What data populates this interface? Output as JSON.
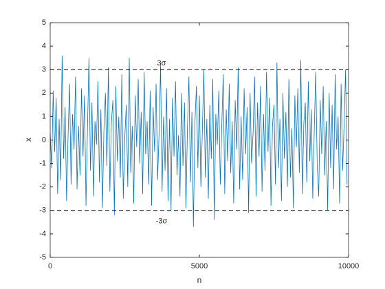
{
  "chart_data": {
    "type": "line",
    "xlabel": "n",
    "ylabel": "x",
    "xlim": [
      0,
      10000
    ],
    "xticks": [
      0,
      5000,
      10000
    ],
    "ylim": [
      -5,
      5
    ],
    "yticks": [
      -5,
      -4,
      -3,
      -2,
      -1,
      0,
      1,
      2,
      3,
      4,
      5
    ],
    "color": "#0072bd",
    "reference_lines": [
      {
        "value": 3,
        "label": "3σ"
      },
      {
        "value": -3,
        "label": "-3σ"
      }
    ],
    "x": [
      0,
      50,
      100,
      150,
      200,
      250,
      300,
      350,
      400,
      450,
      500,
      550,
      600,
      650,
      700,
      750,
      800,
      850,
      900,
      950,
      1000,
      1050,
      1100,
      1150,
      1200,
      1250,
      1300,
      1350,
      1400,
      1450,
      1500,
      1550,
      1600,
      1650,
      1700,
      1750,
      1800,
      1850,
      1900,
      1950,
      2000,
      2050,
      2100,
      2150,
      2200,
      2250,
      2300,
      2350,
      2400,
      2450,
      2500,
      2550,
      2600,
      2650,
      2700,
      2750,
      2800,
      2850,
      2900,
      2950,
      3000,
      3050,
      3100,
      3150,
      3200,
      3250,
      3300,
      3350,
      3400,
      3450,
      3500,
      3550,
      3600,
      3650,
      3700,
      3750,
      3800,
      3850,
      3900,
      3950,
      4000,
      4050,
      4100,
      4150,
      4200,
      4250,
      4300,
      4350,
      4400,
      4450,
      4500,
      4550,
      4600,
      4650,
      4700,
      4750,
      4800,
      4850,
      4900,
      4950,
      5000,
      5050,
      5100,
      5150,
      5200,
      5250,
      5300,
      5350,
      5400,
      5450,
      5500,
      5550,
      5600,
      5650,
      5700,
      5750,
      5800,
      5850,
      5900,
      5950,
      6000,
      6050,
      6100,
      6150,
      6200,
      6250,
      6300,
      6350,
      6400,
      6450,
      6500,
      6550,
      6600,
      6650,
      6700,
      6750,
      6800,
      6850,
      6900,
      6950,
      7000,
      7050,
      7100,
      7150,
      7200,
      7250,
      7300,
      7350,
      7400,
      7450,
      7500,
      7550,
      7600,
      7650,
      7700,
      7750,
      7800,
      7850,
      7900,
      7950,
      8000,
      8050,
      8100,
      8150,
      8200,
      8250,
      8300,
      8350,
      8400,
      8450,
      8500,
      8550,
      8600,
      8650,
      8700,
      8750,
      8800,
      8850,
      8900,
      8950,
      9000,
      9050,
      9100,
      9150,
      9200,
      9250,
      9300,
      9350,
      9400,
      9450,
      9500,
      9550,
      9600,
      9650,
      9700,
      9750,
      9800,
      9850,
      9900,
      9950
    ],
    "values": [
      0.3,
      -1.2,
      2.1,
      -0.5,
      1.8,
      -2.3,
      0.9,
      -1.7,
      3.6,
      -0.8,
      1.4,
      -2.6,
      0.2,
      2.4,
      -1.9,
      1.1,
      -0.4,
      2.7,
      -2.1,
      0.6,
      -1.5,
      2.2,
      -0.7,
      1.9,
      -2.8,
      0.5,
      3.5,
      -1.3,
      1.6,
      -2.4,
      0.8,
      -0.2,
      2.5,
      -1.8,
      1.3,
      -2.9,
      0.4,
      2.0,
      -1.1,
      3.1,
      -2.2,
      0.7,
      1.7,
      -3.2,
      2.3,
      -0.9,
      1.0,
      -1.6,
      2.8,
      -2.5,
      0.1,
      1.5,
      -2.0,
      3.5,
      -1.4,
      0.6,
      -2.7,
      1.9,
      -0.3,
      2.6,
      -1.0,
      1.2,
      -2.3,
      2.9,
      -0.6,
      0.8,
      -1.9,
      2.1,
      -2.8,
      1.4,
      -0.5,
      2.4,
      -1.7,
      0.3,
      3.2,
      -2.2,
      1.0,
      -1.3,
      2.2,
      -2.6,
      0.9,
      -3.0,
      1.8,
      -0.7,
      2.5,
      -1.5,
      0.2,
      -2.4,
      2.0,
      -1.1,
      1.6,
      -2.9,
      0.5,
      2.7,
      -1.8,
      1.2,
      -3.7,
      0.7,
      2.3,
      -1.2,
      1.9,
      -2.0,
      0.4,
      3.0,
      -1.6,
      0.9,
      -2.5,
      1.5,
      -0.8,
      2.6,
      -3.4,
      1.1,
      -0.2,
      2.1,
      -1.9,
      0.6,
      2.8,
      -2.3,
      1.3,
      -0.9,
      2.4,
      -1.4,
      0.8,
      -2.7,
      1.7,
      -0.4,
      3.1,
      -2.1,
      1.0,
      -1.7,
      2.2,
      -0.6,
      1.4,
      -3.1,
      2.0,
      -1.0,
      0.3,
      2.7,
      -2.4,
      1.6,
      -0.7,
      2.3,
      -2.2,
      1.1,
      -1.3,
      2.9,
      -0.5,
      1.8,
      -2.8,
      0.6,
      1.5,
      -1.9,
      3.3,
      -1.2,
      0.9,
      -2.6,
      2.0,
      -0.8,
      1.2,
      -2.0,
      2.6,
      -1.6,
      0.5,
      -2.9,
      1.9,
      -0.3,
      2.2,
      -1.4,
      3.4,
      -2.3,
      0.7,
      1.6,
      -1.8,
      2.5,
      -0.9,
      1.3,
      -2.5,
      0.4,
      2.9,
      -1.1,
      -2.4,
      1.7,
      -0.6,
      2.3,
      -1.5,
      0.8,
      -3.0,
      2.0,
      -1.2,
      1.5,
      -2.1,
      2.8,
      -0.4,
      1.0,
      -2.7,
      2.4,
      -1.3,
      0.6,
      3.0,
      -1.9
    ]
  }
}
